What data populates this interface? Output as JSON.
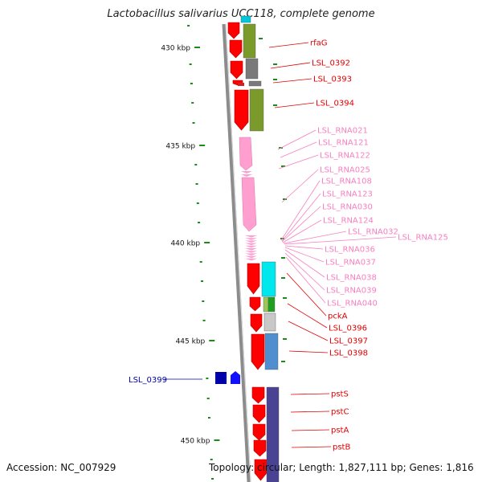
{
  "title": "Lactobacillus salivarius UCC118, complete genome",
  "accession": "Accession: NC_007929",
  "summary": "Topology: circular; Length: 1,827,111 bp; Genes: 1,816",
  "colors": {
    "cds": "#ff0000",
    "rna": "#ff9fcf",
    "highlight": "#0000a8",
    "tick": "#1a8c1a",
    "backbone": "#8c8c8c"
  },
  "kbp_ticks": [
    {
      "label": "430 kbp"
    },
    {
      "label": "435 kbp"
    },
    {
      "label": "440 kbp"
    },
    {
      "label": "445 kbp"
    },
    {
      "label": "450 kbp"
    }
  ],
  "gene_labels": [
    {
      "text": "rfaG",
      "kind": "cds"
    },
    {
      "text": "LSL_0392",
      "kind": "cds"
    },
    {
      "text": "LSL_0393",
      "kind": "cds"
    },
    {
      "text": "LSL_0394",
      "kind": "cds"
    },
    {
      "text": "LSL_RNA021",
      "kind": "rna"
    },
    {
      "text": "LSL_RNA121",
      "kind": "rna"
    },
    {
      "text": "LSL_RNA122",
      "kind": "rna"
    },
    {
      "text": "LSL_RNA025",
      "kind": "rna"
    },
    {
      "text": "LSL_RNA108",
      "kind": "rna"
    },
    {
      "text": "LSL_RNA123",
      "kind": "rna"
    },
    {
      "text": "LSL_RNA030",
      "kind": "rna"
    },
    {
      "text": "LSL_RNA124",
      "kind": "rna"
    },
    {
      "text": "LSL_RNA032",
      "kind": "rna"
    },
    {
      "text": "LSL_RNA125",
      "kind": "rna"
    },
    {
      "text": "LSL_RNA036",
      "kind": "rna"
    },
    {
      "text": "LSL_RNA037",
      "kind": "rna"
    },
    {
      "text": "LSL_RNA038",
      "kind": "rna"
    },
    {
      "text": "LSL_RNA039",
      "kind": "rna"
    },
    {
      "text": "LSL_RNA040",
      "kind": "rna"
    },
    {
      "text": "pckA",
      "kind": "cds"
    },
    {
      "text": "LSL_0396",
      "kind": "cds"
    },
    {
      "text": "LSL_0397",
      "kind": "cds"
    },
    {
      "text": "LSL_0398",
      "kind": "cds"
    },
    {
      "text": "pstS",
      "kind": "cds"
    },
    {
      "text": "pstC",
      "kind": "cds"
    },
    {
      "text": "pstA",
      "kind": "cds"
    },
    {
      "text": "pstB",
      "kind": "cds"
    },
    {
      "text": "LSL_0399",
      "kind": "highlight"
    }
  ]
}
